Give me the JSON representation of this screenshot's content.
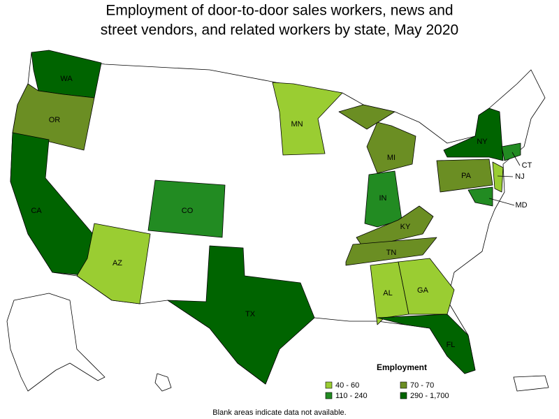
{
  "title_lines": [
    "Employment of door-to-door sales workers, news and",
    "street vendors, and related workers by state, May 2020"
  ],
  "states": [
    {
      "label": "WA",
      "color": "#006400"
    },
    {
      "label": "OR",
      "color": "#6b8e23"
    },
    {
      "label": "CA",
      "color": "#006400"
    },
    {
      "label": "AZ",
      "color": "#9acd32"
    },
    {
      "label": "CO",
      "color": "#228b22"
    },
    {
      "label": "TX",
      "color": "#006400"
    },
    {
      "label": "MN",
      "color": "#9acd32"
    },
    {
      "label": "MI",
      "color": "#6b8e23"
    },
    {
      "label": "IN",
      "color": "#228b22"
    },
    {
      "label": "KY",
      "color": "#6b8e23"
    },
    {
      "label": "TN",
      "color": "#6b8e23"
    },
    {
      "label": "AL",
      "color": "#9acd32"
    },
    {
      "label": "GA",
      "color": "#9acd32"
    },
    {
      "label": "FL",
      "color": "#006400"
    },
    {
      "label": "NY",
      "color": "#006400"
    },
    {
      "label": "PA",
      "color": "#6b8e23"
    },
    {
      "label": "NJ",
      "color": "#9acd32"
    },
    {
      "label": "CT",
      "color": "#228b22"
    },
    {
      "label": "MD",
      "color": "#228b22"
    }
  ],
  "legend": {
    "title": "Employment",
    "items": [
      {
        "label": "40 - 60",
        "color": "#9acd32"
      },
      {
        "label": "70 - 70",
        "color": "#6b8e23"
      },
      {
        "label": "110 - 240",
        "color": "#228b22"
      },
      {
        "label": "290 - 1,700",
        "color": "#006400"
      }
    ]
  },
  "note": "Blank areas indicate data not available."
}
